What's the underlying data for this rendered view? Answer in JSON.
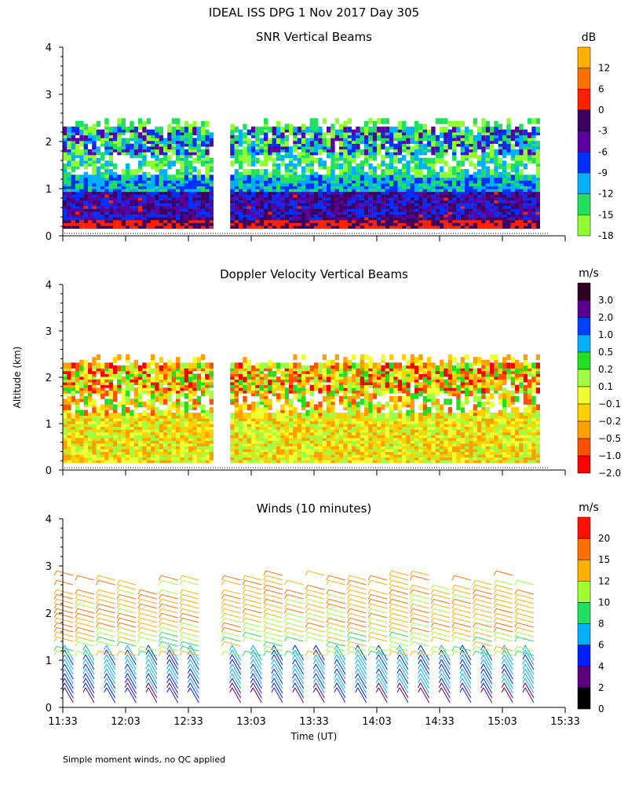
{
  "page_title": "IDEAL ISS DPG    1 Nov 2017 Day 305",
  "y_axis_label": "Altitude (km)",
  "footer_note": "Simple moment winds, no QC applied",
  "chart_data": [
    {
      "type": "heatmap",
      "title": "SNR Vertical Beams",
      "xlabel": "",
      "ylabel": "Altitude (km)",
      "xlim": [
        "11:33",
        "15:33"
      ],
      "ylim": [
        0,
        4
      ],
      "y_ticks": [
        "0",
        "1",
        "2",
        "3",
        "4"
      ],
      "x_ticks": [
        "11:33",
        "12:03",
        "12:33",
        "13:03",
        "13:33",
        "14:03",
        "14:33",
        "15:03",
        "15:33"
      ],
      "colorbar": {
        "unit": "dB",
        "labels": [
          "12",
          "6",
          "0",
          "-3",
          "-6",
          "-9",
          "-12",
          "-15",
          "-18"
        ],
        "colors": [
          "#ffb000",
          "#ff7000",
          "#ff2000",
          "#3c0060",
          "#5a00a0",
          "#0030ff",
          "#00b0ff",
          "#20e060",
          "#90ff30"
        ]
      },
      "data_gaps": [
        [
          "12:44",
          "12:52"
        ]
      ],
      "data_end": "15:20"
    },
    {
      "type": "heatmap",
      "title": "Doppler Velocity Vertical Beams",
      "xlabel": "",
      "ylabel": "Altitude (km)",
      "xlim": [
        "11:33",
        "15:33"
      ],
      "ylim": [
        0,
        4
      ],
      "y_ticks": [
        "0",
        "1",
        "2",
        "3",
        "4"
      ],
      "x_ticks": [
        "11:33",
        "12:03",
        "12:33",
        "13:03",
        "13:33",
        "14:03",
        "14:33",
        "15:03",
        "15:33"
      ],
      "colorbar": {
        "unit": "m/s",
        "labels": [
          "3.0",
          "2.0",
          "1.0",
          "0.5",
          "0.2",
          "0.1",
          "−0.1",
          "−0.2",
          "−0.5",
          "−1.0",
          "−2.0"
        ],
        "colors": [
          "#300020",
          "#5a0090",
          "#0040ff",
          "#00b0ff",
          "#20e020",
          "#a0ff40",
          "#f0ff30",
          "#ffd000",
          "#ffa000",
          "#ff5000",
          "#ff0000"
        ]
      },
      "data_gaps": [
        [
          "12:44",
          "12:52"
        ]
      ],
      "data_end": "15:20"
    },
    {
      "type": "barbs",
      "title": "Winds (10 minutes)",
      "xlabel": "Time (UT)",
      "ylabel": "Altitude (km)",
      "xlim": [
        "11:33",
        "15:33"
      ],
      "ylim": [
        0,
        4
      ],
      "y_ticks": [
        "0",
        "1",
        "2",
        "3",
        "4"
      ],
      "x_ticks": [
        "11:33",
        "12:03",
        "12:33",
        "13:03",
        "13:33",
        "14:03",
        "14:33",
        "15:03",
        "15:33"
      ],
      "colorbar": {
        "unit": "m/s",
        "labels": [
          "20",
          "15",
          "12",
          "10",
          "8",
          "6",
          "4",
          "2",
          "0"
        ],
        "colors": [
          "#ff1000",
          "#ff7000",
          "#ffb000",
          "#a0ff30",
          "#20e060",
          "#00b0ff",
          "#0020ff",
          "#5a0080",
          "#000000"
        ]
      },
      "data_gaps": [
        [
          "12:44",
          "12:52"
        ]
      ],
      "data_end": "15:20"
    }
  ]
}
